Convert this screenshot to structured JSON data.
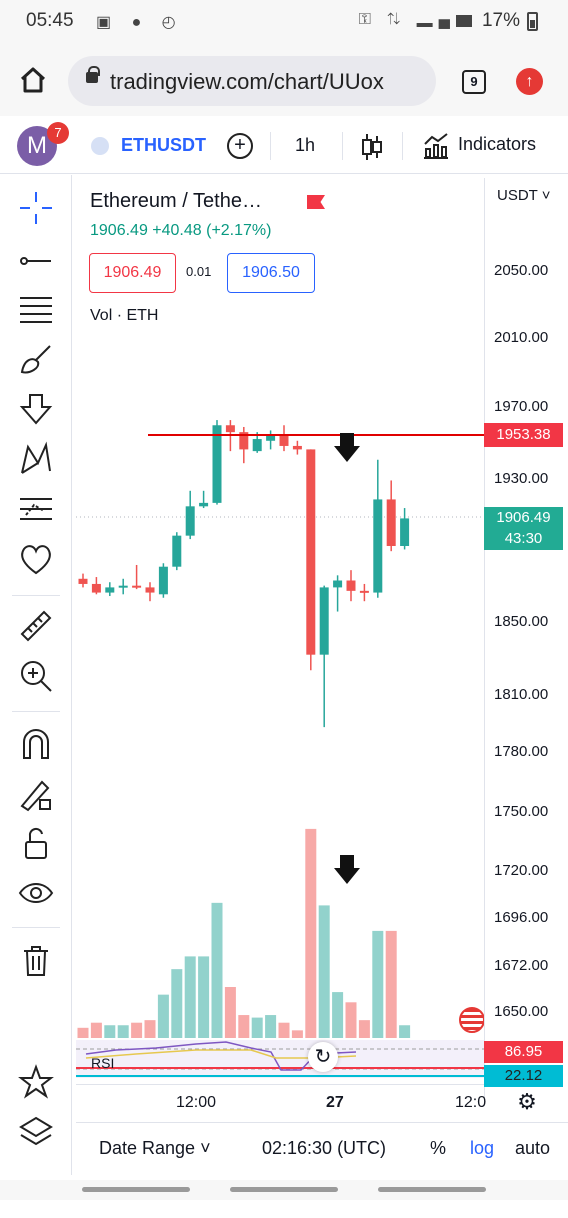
{
  "status_bar": {
    "time": "05:45",
    "battery": "17%"
  },
  "browser": {
    "url": "tradingview.com/chart/UUox",
    "tab_count": "9"
  },
  "toolbar": {
    "avatar_letter": "M",
    "notification_count": "7",
    "symbol": "ETHUSDT",
    "add_symbol": "+",
    "interval": "1h",
    "indicators_label": "Indicators"
  },
  "legend": {
    "title": "Ethereum / Tethe…",
    "price_line": "1906.49  +40.48 (+2.17%)",
    "sell_price": "1906.49",
    "spread": "0.01",
    "buy_price": "1906.50",
    "volume_label": "Vol · ETH"
  },
  "price_axis": {
    "unit": "USDT ˅",
    "ticks": [
      "2050.00",
      "2010.00",
      "1970.00",
      "1930.00",
      "1850.00",
      "1810.00",
      "1780.00",
      "1750.00",
      "1720.00",
      "1696.00",
      "1672.00",
      "1650.00"
    ],
    "hline_label": "1953.38",
    "last_price": "1906.49",
    "countdown": "43:30",
    "rsi_value_1": "86.95",
    "rsi_value_2": "22.12"
  },
  "time_axis": {
    "ticks": [
      "12:00",
      "27",
      "12:0"
    ]
  },
  "rsi_pane": {
    "label": "RSI"
  },
  "bottom_bar": {
    "date_range": "Date Range ˅",
    "clock": "02:16:30 (UTC)",
    "percent": "%",
    "log": "log",
    "auto": "auto"
  },
  "colors": {
    "up": "#26a69a",
    "down": "#ef5350",
    "accent": "#2962ff",
    "hline": "#e00000"
  },
  "chart_data": {
    "type": "candlestick",
    "symbol": "ETHUSDT",
    "interval": "1h",
    "horizontal_line": 1953.38,
    "last_price": 1906.49,
    "candles": [
      {
        "o": 1871,
        "h": 1874,
        "l": 1866,
        "c": 1868
      },
      {
        "o": 1868,
        "h": 1872,
        "l": 1862,
        "c": 1863
      },
      {
        "o": 1863,
        "h": 1869,
        "l": 1861,
        "c": 1866
      },
      {
        "o": 1866,
        "h": 1871,
        "l": 1862,
        "c": 1867
      },
      {
        "o": 1867,
        "h": 1879,
        "l": 1865,
        "c": 1866
      },
      {
        "o": 1866,
        "h": 1869,
        "l": 1858,
        "c": 1863
      },
      {
        "o": 1862,
        "h": 1880,
        "l": 1860,
        "c": 1878
      },
      {
        "o": 1878,
        "h": 1898,
        "l": 1876,
        "c": 1896
      },
      {
        "o": 1896,
        "h": 1922,
        "l": 1894,
        "c": 1913
      },
      {
        "o": 1913,
        "h": 1922,
        "l": 1912,
        "c": 1915
      },
      {
        "o": 1915,
        "h": 1963,
        "l": 1914,
        "c": 1960
      },
      {
        "o": 1960,
        "h": 1963,
        "l": 1945,
        "c": 1956
      },
      {
        "o": 1956,
        "h": 1959,
        "l": 1938,
        "c": 1946
      },
      {
        "o": 1945,
        "h": 1956,
        "l": 1944,
        "c": 1952
      },
      {
        "o": 1951,
        "h": 1957,
        "l": 1946,
        "c": 1954
      },
      {
        "o": 1954,
        "h": 1960,
        "l": 1945,
        "c": 1948
      },
      {
        "o": 1948,
        "h": 1951,
        "l": 1943,
        "c": 1946
      },
      {
        "o": 1946,
        "h": 1946,
        "l": 1818,
        "c": 1827
      },
      {
        "o": 1827,
        "h": 1867,
        "l": 1785,
        "c": 1866
      },
      {
        "o": 1866,
        "h": 1873,
        "l": 1852,
        "c": 1870
      },
      {
        "o": 1870,
        "h": 1876,
        "l": 1858,
        "c": 1864
      },
      {
        "o": 1864,
        "h": 1868,
        "l": 1858,
        "c": 1863
      },
      {
        "o": 1863,
        "h": 1940,
        "l": 1860,
        "c": 1917
      },
      {
        "o": 1917,
        "h": 1928,
        "l": 1887,
        "c": 1890
      },
      {
        "o": 1890,
        "h": 1912,
        "l": 1888,
        "c": 1906
      }
    ],
    "volume": [
      4,
      6,
      5,
      5,
      6,
      7,
      17,
      27,
      32,
      32,
      53,
      20,
      9,
      8,
      9,
      6,
      3,
      82,
      52,
      18,
      14,
      7,
      42,
      42,
      5
    ]
  }
}
